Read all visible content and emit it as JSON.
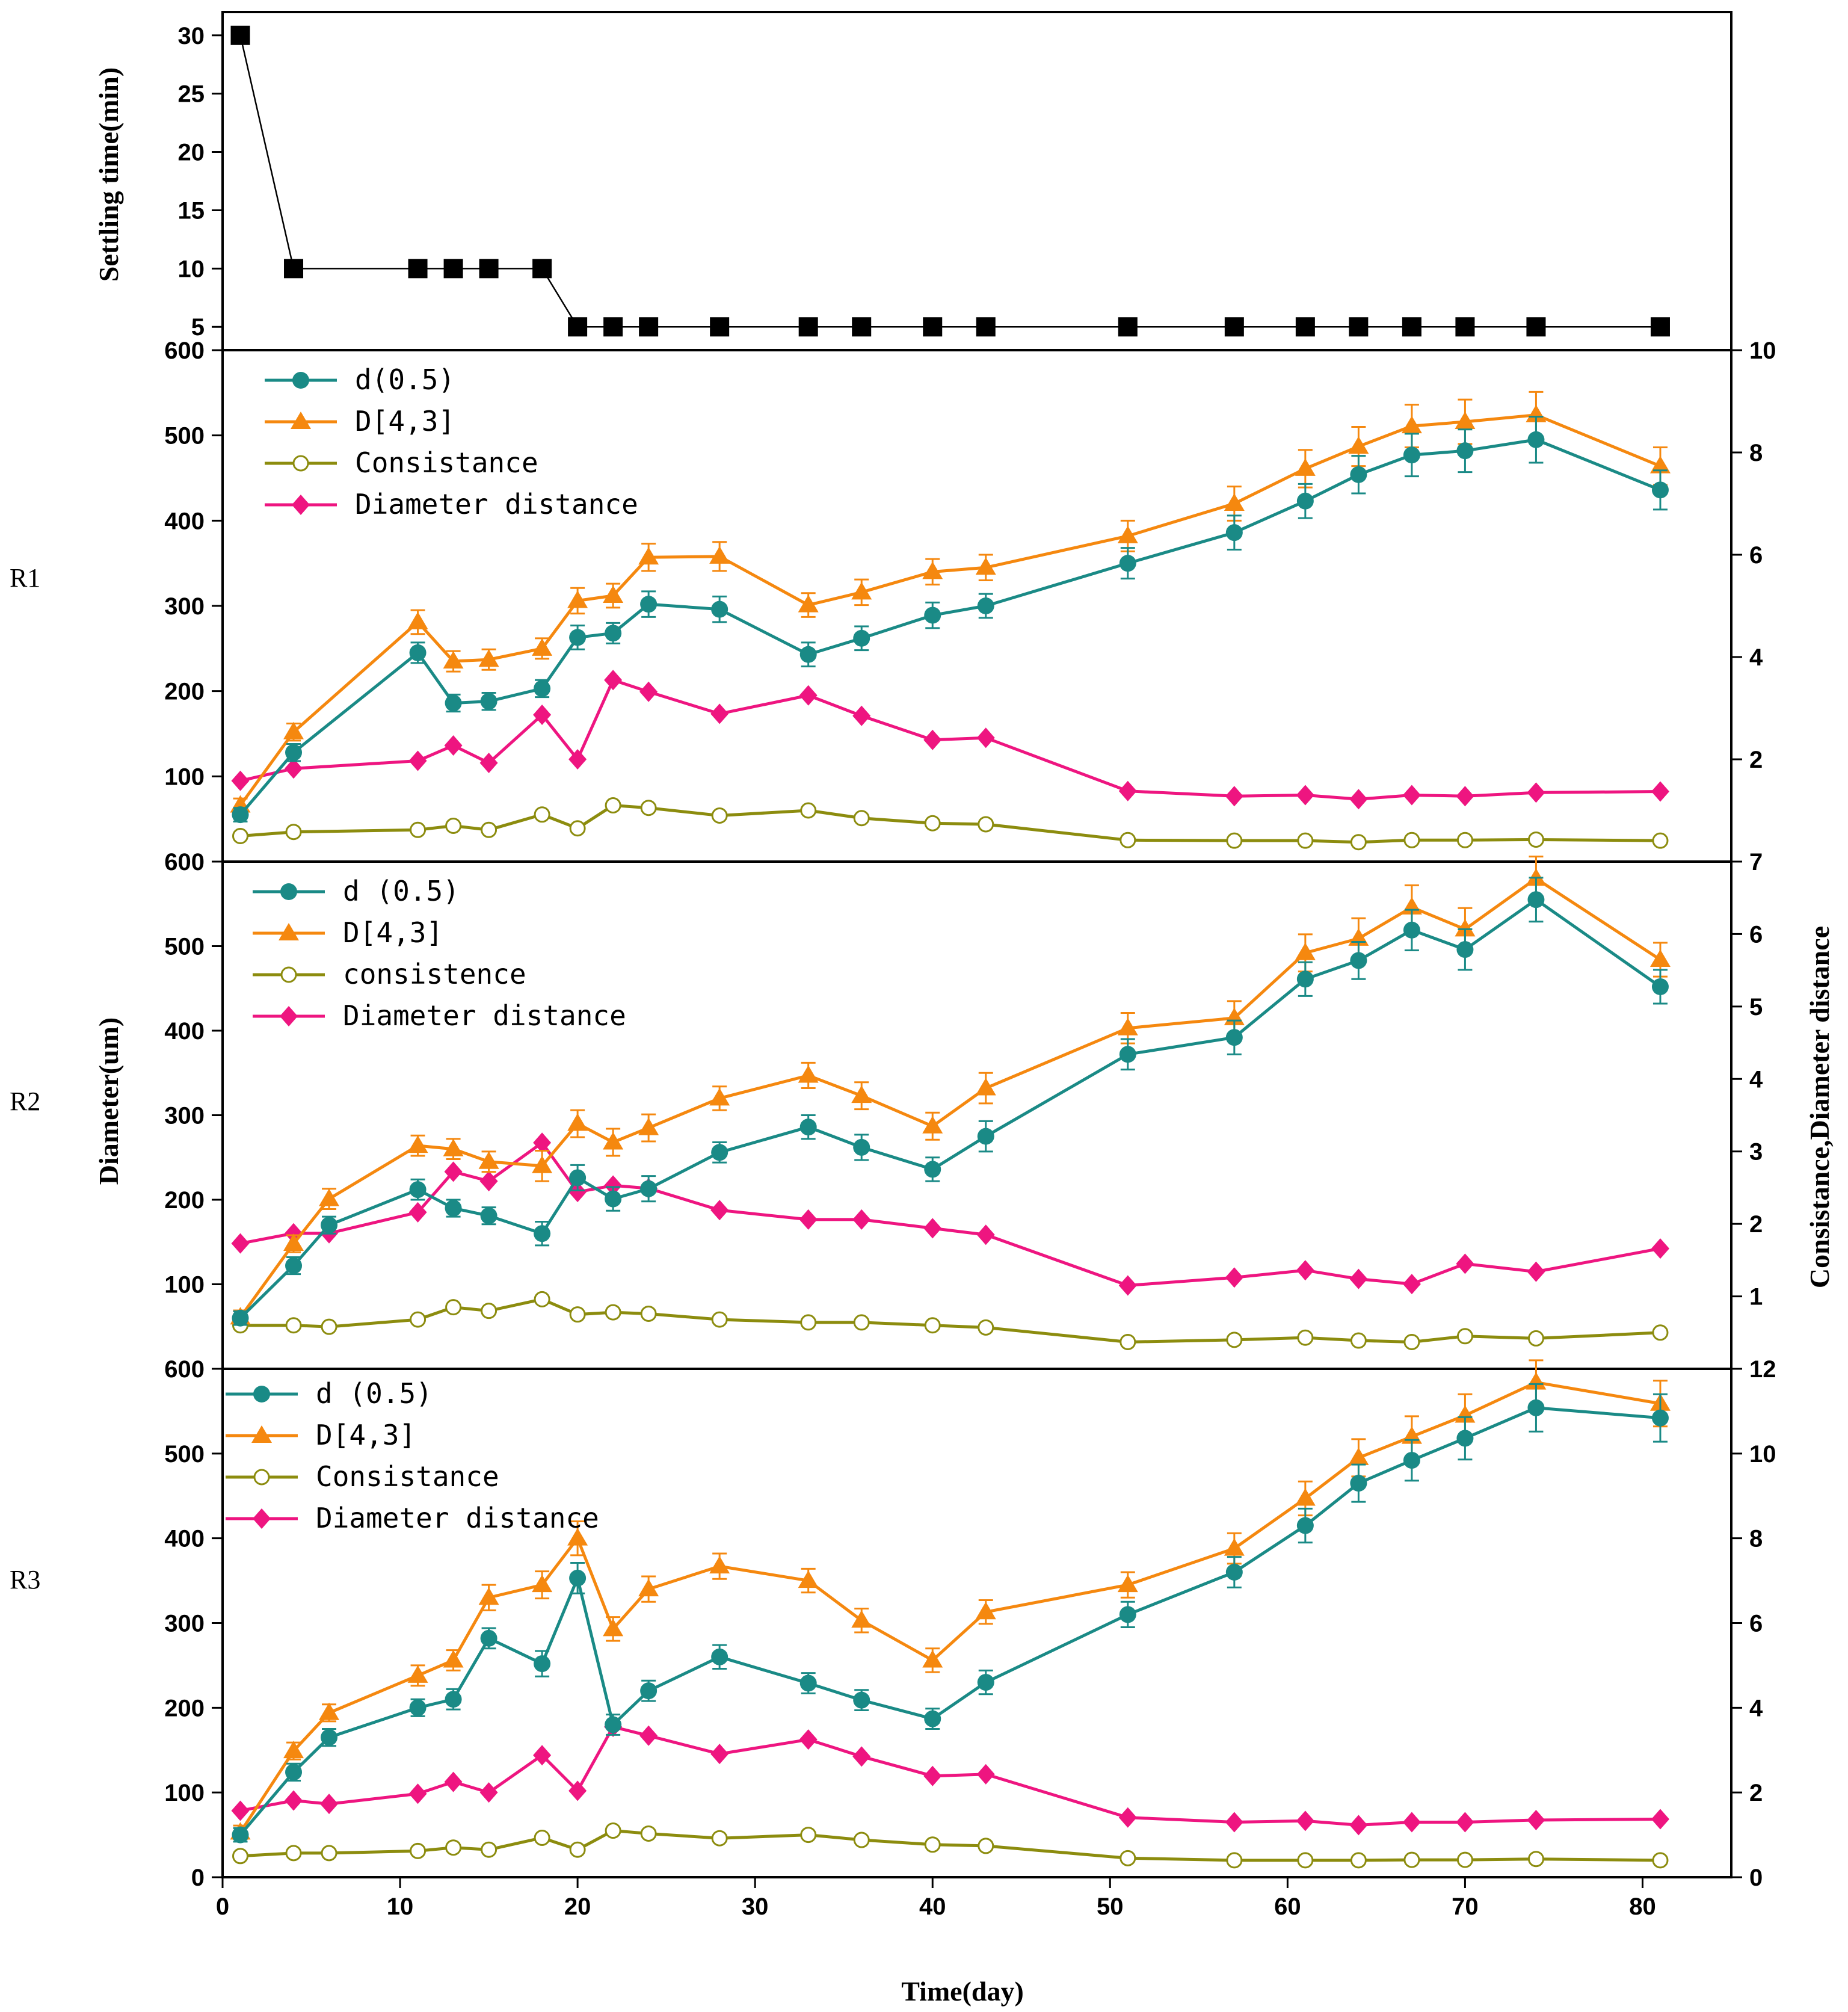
{
  "chart_data": [
    {
      "id": "settling",
      "type": "line",
      "ylabel": "Settling time(min)",
      "ylim": [
        3,
        32
      ],
      "yticks": [
        5,
        10,
        15,
        20,
        25,
        30
      ],
      "series": [
        {
          "name": "Settling time",
          "color": "#000000",
          "marker": "square",
          "x": [
            1,
            4,
            11,
            13,
            15,
            18,
            20,
            22,
            24,
            28,
            33,
            36,
            40,
            43,
            51,
            57,
            61,
            64,
            67,
            70,
            74,
            81
          ],
          "y": [
            30,
            10,
            10,
            10,
            10,
            10,
            5,
            5,
            5,
            5,
            5,
            5,
            5,
            5,
            5,
            5,
            5,
            5,
            5,
            5,
            5,
            5
          ]
        }
      ]
    },
    {
      "id": "R1",
      "type": "line",
      "row_label": "R1",
      "ylim": [
        0,
        600
      ],
      "yticks": [
        100,
        200,
        300,
        400,
        500,
        600
      ],
      "y2lim": [
        0,
        10
      ],
      "y2ticks": [
        2,
        4,
        6,
        8,
        10
      ],
      "series": [
        {
          "name": "d(0.5)",
          "axis": "left",
          "color": "#1A8A86",
          "marker": "circle",
          "x": [
            1,
            4,
            11,
            13,
            15,
            18,
            20,
            22,
            24,
            28,
            33,
            36,
            40,
            43,
            51,
            57,
            61,
            64,
            67,
            70,
            74,
            81
          ],
          "y": [
            55,
            128,
            245,
            186,
            188,
            203,
            263,
            268,
            302,
            296,
            243,
            262,
            289,
            300,
            350,
            386,
            423,
            454,
            477,
            482,
            495,
            436
          ],
          "err": [
            8,
            10,
            12,
            10,
            10,
            10,
            14,
            12,
            15,
            15,
            14,
            14,
            15,
            14,
            18,
            20,
            20,
            22,
            25,
            25,
            27,
            23
          ]
        },
        {
          "name": "D[4,3]",
          "axis": "left",
          "color": "#F5880F",
          "marker": "triangle",
          "x": [
            1,
            4,
            11,
            13,
            15,
            18,
            20,
            22,
            24,
            28,
            33,
            36,
            40,
            43,
            51,
            57,
            61,
            64,
            67,
            70,
            74,
            81
          ],
          "y": [
            66,
            152,
            281,
            235,
            237,
            250,
            306,
            312,
            357,
            358,
            301,
            316,
            340,
            345,
            382,
            420,
            461,
            487,
            511,
            516,
            524,
            464
          ],
          "err": [
            8,
            10,
            14,
            12,
            12,
            12,
            15,
            14,
            16,
            17,
            14,
            15,
            15,
            15,
            18,
            20,
            22,
            23,
            25,
            26,
            27,
            22
          ]
        },
        {
          "name": "Consistance",
          "axis": "right",
          "color": "#8C8C0E",
          "marker": "open-circle",
          "x": [
            1,
            4,
            11,
            13,
            15,
            18,
            20,
            22,
            24,
            28,
            33,
            36,
            40,
            43,
            51,
            57,
            61,
            64,
            67,
            70,
            74,
            81
          ],
          "y": [
            0.5,
            0.58,
            0.62,
            0.7,
            0.62,
            0.92,
            0.65,
            1.1,
            1.05,
            0.9,
            1.0,
            0.85,
            0.75,
            0.73,
            0.42,
            0.41,
            0.41,
            0.38,
            0.42,
            0.42,
            0.43,
            0.41
          ]
        },
        {
          "name": "Diameter distance",
          "axis": "right",
          "color": "#EE1580",
          "marker": "diamond",
          "x": [
            1,
            4,
            11,
            13,
            15,
            18,
            20,
            22,
            24,
            28,
            33,
            36,
            40,
            43,
            51,
            57,
            61,
            64,
            67,
            70,
            74,
            81
          ],
          "y": [
            1.58,
            1.82,
            1.97,
            2.27,
            1.93,
            2.87,
            2.0,
            3.55,
            3.32,
            2.89,
            3.25,
            2.85,
            2.38,
            2.42,
            1.38,
            1.28,
            1.3,
            1.22,
            1.3,
            1.28,
            1.35,
            1.37
          ]
        }
      ]
    },
    {
      "id": "R2",
      "type": "line",
      "row_label": "R2",
      "ylim": [
        0,
        600
      ],
      "yticks": [
        100,
        200,
        300,
        400,
        500,
        600
      ],
      "y2lim": [
        0,
        7
      ],
      "y2ticks": [
        1,
        2,
        3,
        4,
        5,
        6,
        7
      ],
      "series": [
        {
          "name": "d (0.5)",
          "axis": "left",
          "color": "#1A8A86",
          "marker": "circle",
          "x": [
            1,
            4,
            6,
            11,
            13,
            15,
            18,
            20,
            22,
            24,
            28,
            33,
            36,
            40,
            43,
            51,
            57,
            61,
            64,
            67,
            70,
            74,
            81
          ],
          "y": [
            60,
            122,
            170,
            212,
            190,
            181,
            160,
            226,
            201,
            213,
            256,
            286,
            262,
            236,
            275,
            372,
            392,
            461,
            483,
            519,
            496,
            555,
            452
          ],
          "err": [
            8,
            10,
            10,
            12,
            10,
            10,
            14,
            15,
            14,
            15,
            12,
            14,
            15,
            14,
            18,
            18,
            20,
            20,
            22,
            24,
            24,
            26,
            20
          ]
        },
        {
          "name": "D[4,3]",
          "axis": "left",
          "color": "#F5880F",
          "marker": "triangle",
          "x": [
            1,
            4,
            6,
            11,
            13,
            15,
            18,
            20,
            22,
            24,
            28,
            33,
            36,
            40,
            43,
            51,
            57,
            61,
            64,
            67,
            70,
            74,
            81
          ],
          "y": [
            61,
            148,
            201,
            264,
            260,
            245,
            240,
            290,
            268,
            285,
            320,
            347,
            323,
            287,
            332,
            403,
            415,
            492,
            509,
            546,
            520,
            580,
            484
          ],
          "err": [
            8,
            10,
            12,
            12,
            12,
            12,
            18,
            16,
            16,
            16,
            14,
            15,
            16,
            16,
            18,
            18,
            20,
            22,
            24,
            26,
            25,
            26,
            20
          ]
        },
        {
          "name": "consistence",
          "axis": "right",
          "color": "#8C8C0E",
          "marker": "open-circle",
          "x": [
            1,
            4,
            6,
            11,
            13,
            15,
            18,
            20,
            22,
            24,
            28,
            33,
            36,
            40,
            43,
            51,
            57,
            61,
            64,
            67,
            70,
            74,
            81
          ],
          "y": [
            0.6,
            0.6,
            0.58,
            0.68,
            0.85,
            0.8,
            0.96,
            0.75,
            0.78,
            0.76,
            0.68,
            0.64,
            0.64,
            0.6,
            0.57,
            0.37,
            0.4,
            0.43,
            0.39,
            0.37,
            0.45,
            0.42,
            0.5
          ]
        },
        {
          "name": "Diameter distance",
          "axis": "right",
          "color": "#EE1580",
          "marker": "diamond",
          "x": [
            1,
            4,
            6,
            11,
            13,
            15,
            18,
            20,
            22,
            24,
            28,
            33,
            36,
            40,
            43,
            51,
            57,
            61,
            64,
            67,
            70,
            74,
            81
          ],
          "y": [
            1.73,
            1.87,
            1.87,
            2.16,
            2.72,
            2.59,
            3.12,
            2.44,
            2.53,
            2.49,
            2.19,
            2.06,
            2.06,
            1.94,
            1.85,
            1.15,
            1.26,
            1.36,
            1.24,
            1.17,
            1.45,
            1.34,
            1.66
          ]
        }
      ]
    },
    {
      "id": "R3",
      "type": "line",
      "row_label": "R3",
      "xlabel": "Time(day)",
      "xlim": [
        0,
        85
      ],
      "xticks": [
        0,
        10,
        20,
        30,
        40,
        50,
        60,
        70,
        80
      ],
      "ylim": [
        0,
        600
      ],
      "yticks": [
        0,
        100,
        200,
        300,
        400,
        500,
        600
      ],
      "y2lim": [
        0,
        12
      ],
      "y2ticks": [
        0,
        2,
        4,
        6,
        8,
        10,
        12
      ],
      "series": [
        {
          "name": "d (0.5)",
          "axis": "left",
          "color": "#1A8A86",
          "marker": "circle",
          "x": [
            1,
            4,
            6,
            11,
            13,
            15,
            18,
            20,
            22,
            24,
            28,
            33,
            36,
            40,
            43,
            51,
            57,
            61,
            64,
            67,
            70,
            74,
            81
          ],
          "y": [
            50,
            124,
            165,
            200,
            210,
            282,
            252,
            353,
            180,
            220,
            260,
            229,
            209,
            187,
            230,
            310,
            360,
            415,
            465,
            492,
            518,
            554,
            542
          ],
          "err": [
            8,
            10,
            10,
            10,
            12,
            12,
            15,
            18,
            12,
            12,
            14,
            12,
            12,
            12,
            14,
            15,
            18,
            20,
            22,
            24,
            25,
            28,
            28
          ]
        },
        {
          "name": "D[4,3]",
          "axis": "left",
          "color": "#F5880F",
          "marker": "triangle",
          "x": [
            1,
            4,
            6,
            11,
            13,
            15,
            18,
            20,
            22,
            24,
            28,
            33,
            36,
            40,
            43,
            51,
            57,
            61,
            64,
            67,
            70,
            74,
            81
          ],
          "y": [
            53,
            149,
            194,
            238,
            256,
            330,
            345,
            400,
            293,
            340,
            367,
            350,
            303,
            256,
            313,
            345,
            388,
            447,
            495,
            520,
            545,
            584,
            559
          ],
          "err": [
            8,
            10,
            10,
            12,
            12,
            15,
            16,
            20,
            14,
            15,
            15,
            14,
            14,
            14,
            14,
            15,
            18,
            20,
            22,
            24,
            25,
            26,
            27
          ]
        },
        {
          "name": "Consistance",
          "axis": "right",
          "color": "#8C8C0E",
          "marker": "open-circle",
          "x": [
            1,
            4,
            6,
            11,
            13,
            15,
            18,
            20,
            22,
            24,
            28,
            33,
            36,
            40,
            43,
            51,
            57,
            61,
            64,
            67,
            70,
            74,
            81
          ],
          "y": [
            0.5,
            0.57,
            0.57,
            0.62,
            0.7,
            0.65,
            0.93,
            0.65,
            1.1,
            1.03,
            0.92,
            1.0,
            0.88,
            0.77,
            0.74,
            0.45,
            0.4,
            0.4,
            0.4,
            0.41,
            0.41,
            0.43,
            0.4
          ]
        },
        {
          "name": "Diameter distance",
          "axis": "right",
          "color": "#EE1580",
          "marker": "diamond",
          "x": [
            1,
            4,
            6,
            11,
            13,
            15,
            18,
            20,
            22,
            24,
            28,
            33,
            36,
            40,
            43,
            51,
            57,
            61,
            64,
            67,
            70,
            74,
            81
          ],
          "y": [
            1.57,
            1.81,
            1.73,
            1.97,
            2.25,
            2.0,
            2.88,
            2.04,
            3.55,
            3.34,
            2.91,
            3.25,
            2.85,
            2.39,
            2.43,
            1.41,
            1.3,
            1.33,
            1.23,
            1.3,
            1.3,
            1.35,
            1.37
          ]
        }
      ]
    }
  ],
  "labels": {
    "left_axis_title": "Diameter(um)",
    "right_axis_title": "Consistance,Diameter distance",
    "x_axis_title": "Time(day)",
    "settling_axis_title": "Settling time(min)"
  }
}
